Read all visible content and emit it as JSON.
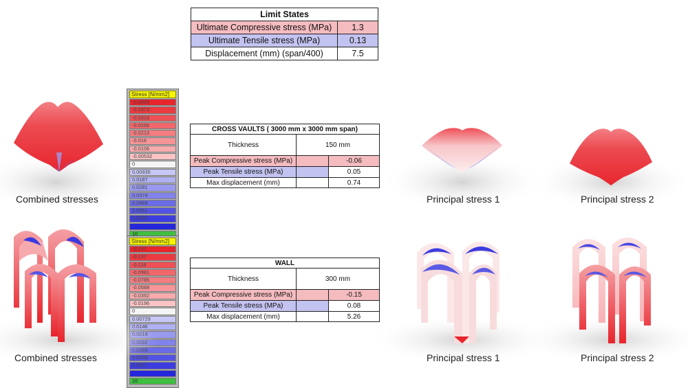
{
  "limit_states": {
    "title": "Limit States",
    "rows": [
      {
        "label": "Ultimate Compressive stress (MPa)",
        "value": "1.3"
      },
      {
        "label": "Ultimate Tensile stress (MPa)",
        "value": "0.13"
      },
      {
        "label": "Displacement (mm) (span/400)",
        "value": "7.5"
      }
    ]
  },
  "vault_table": {
    "title": "CROSS VAULTS ( 3000 mm x 3000 mm span)",
    "thickness_label": "Thickness",
    "thickness_value": "150 mm",
    "rows": [
      {
        "label": "Peak Compressive stress (MPa)",
        "value": "-0.06"
      },
      {
        "label": "Peak Tensile stress (MPa)",
        "value": "0.05"
      },
      {
        "label": "Max displacement (mm)",
        "value": "0.74"
      }
    ]
  },
  "wall_table": {
    "title": "WALL",
    "thickness_label": "Thickness",
    "thickness_value": "300 mm",
    "rows": [
      {
        "label": "Peak Compressive stress (MPa)",
        "value": "-0.15"
      },
      {
        "label": "Peak Tensile stress (MPa)",
        "value": "0.08"
      },
      {
        "label": "Max displacement (mm)",
        "value": "5.26"
      }
    ]
  },
  "legend_top": {
    "title": "Stress [N/mm2]",
    "items": [
      {
        "label": "-0.0426",
        "color": "#e8242c"
      },
      {
        "label": "-0.0373",
        "color": "#eb3a40"
      },
      {
        "label": "-0.0319",
        "color": "#ee5055"
      },
      {
        "label": "-0.0266",
        "color": "#f1676b"
      },
      {
        "label": "-0.0213",
        "color": "#f37d81"
      },
      {
        "label": "-0.016",
        "color": "#f69497"
      },
      {
        "label": "-0.0106",
        "color": "#f8abad"
      },
      {
        "label": "-0.00532",
        "color": "#fbc3c4"
      },
      {
        "label": "0",
        "color": "#f4f4f4"
      },
      {
        "label": "0.00935",
        "color": "#c7c7f7"
      },
      {
        "label": "0.0187",
        "color": "#b0b0f3"
      },
      {
        "label": "0.0281",
        "color": "#9999ef"
      },
      {
        "label": "0.0374",
        "color": "#8282eb"
      },
      {
        "label": "0.0468",
        "color": "#6b6be7"
      },
      {
        "label": "0.0561",
        "color": "#5454e3"
      },
      {
        "label": "0.0655",
        "color": "#3d3ddf"
      },
      {
        "label": "",
        "color": "#2626db"
      },
      {
        "label": "10",
        "color": "#3fbf3f"
      }
    ]
  },
  "legend_bottom": {
    "title": "Stress [N/mm2]",
    "items": [
      {
        "label": "-0.157",
        "color": "#e8242c"
      },
      {
        "label": "-0.137",
        "color": "#eb3a40"
      },
      {
        "label": "-0.118",
        "color": "#ee5055"
      },
      {
        "label": "-0.0981",
        "color": "#f1676b"
      },
      {
        "label": "-0.0785",
        "color": "#f37d81"
      },
      {
        "label": "-0.0588",
        "color": "#f69497"
      },
      {
        "label": "-0.0392",
        "color": "#f8abad"
      },
      {
        "label": "-0.0196",
        "color": "#fbc3c4"
      },
      {
        "label": "0",
        "color": "#f4f4f4"
      },
      {
        "label": "0.00729",
        "color": "#c7c7f7"
      },
      {
        "label": "0.0146",
        "color": "#b0b0f3"
      },
      {
        "label": "0.0219",
        "color": "#9999ef"
      },
      {
        "label": "0.0292",
        "color": "#8282eb"
      },
      {
        "label": "0.0365",
        "color": "#6b6be7"
      },
      {
        "label": "0.0438",
        "color": "#5454e3"
      },
      {
        "label": "0.0511",
        "color": "#3d3ddf"
      },
      {
        "label": "",
        "color": "#2626db"
      },
      {
        "label": "10",
        "color": "#3fbf3f"
      }
    ]
  },
  "captions": {
    "combined_top": "Combined stresses",
    "principal1_top": "Principal stress 1",
    "principal2_top": "Principal stress 2",
    "combined_bottom": "Combined stresses",
    "principal1_bottom": "Principal stress 1",
    "principal2_bottom": "Principal stress 2"
  },
  "colors": {
    "compression": "#e8242c",
    "tension": "#2626db",
    "compressive_row": "#f5bcc0",
    "tensile_row": "#c3c3f1",
    "legend_title": "#f7f500",
    "legend_frame": "#b9b9b9"
  }
}
